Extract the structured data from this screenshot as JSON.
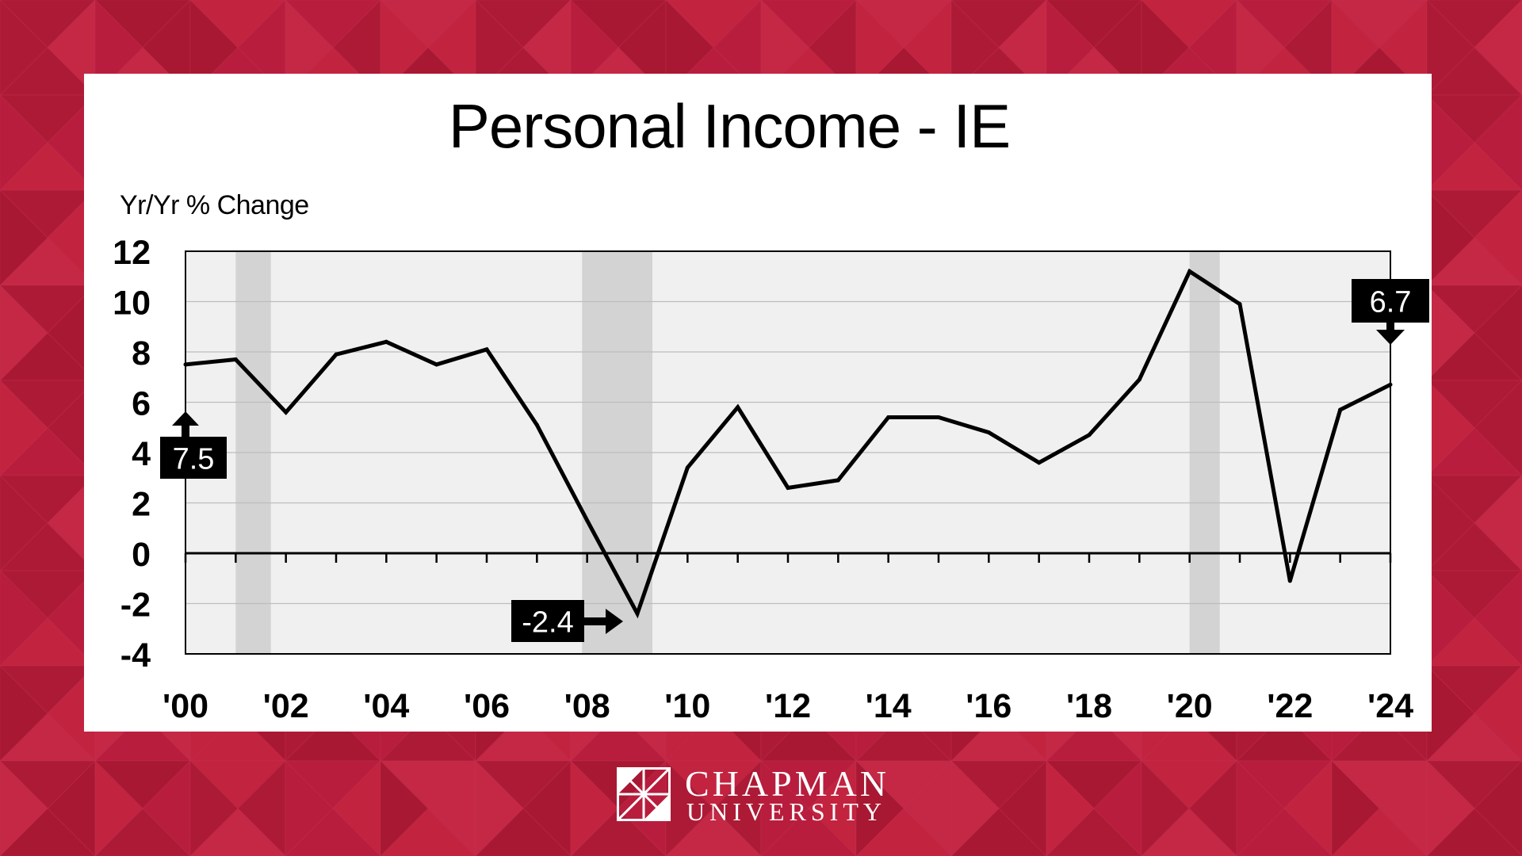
{
  "brand": {
    "name_line1": "CHAPMAN",
    "name_line2": "UNIVERSITY"
  },
  "colors": {
    "background": "#b81d3d",
    "plot_background": "#f0f0f0",
    "recession_band": "#d3d3d3",
    "line": "#000000",
    "callout_fill": "#000000",
    "callout_text": "#ffffff"
  },
  "chart_data": {
    "type": "line",
    "title": "Personal Income - IE",
    "ylabel": "Yr/Yr % Change",
    "xlabel": "",
    "ylim": [
      -4,
      12
    ],
    "yticks": [
      12,
      10,
      8,
      6,
      4,
      2,
      0,
      -2,
      -4
    ],
    "xlim": [
      2000,
      2024
    ],
    "xtick_labels": [
      {
        "year": 2000,
        "label": "'00"
      },
      {
        "year": 2002,
        "label": "'02"
      },
      {
        "year": 2004,
        "label": "'04"
      },
      {
        "year": 2006,
        "label": "'06"
      },
      {
        "year": 2008,
        "label": "'08"
      },
      {
        "year": 2010,
        "label": "'10"
      },
      {
        "year": 2012,
        "label": "'12"
      },
      {
        "year": 2014,
        "label": "'14"
      },
      {
        "year": 2016,
        "label": "'16"
      },
      {
        "year": 2018,
        "label": "'18"
      },
      {
        "year": 2020,
        "label": "'20"
      },
      {
        "year": 2022,
        "label": "'22"
      },
      {
        "year": 2024,
        "label": "'24"
      }
    ],
    "grid": true,
    "x": [
      2000,
      2001,
      2002,
      2003,
      2004,
      2005,
      2006,
      2007,
      2008,
      2009,
      2010,
      2011,
      2012,
      2013,
      2014,
      2015,
      2016,
      2017,
      2018,
      2019,
      2020,
      2021,
      2022,
      2023,
      2024
    ],
    "values": [
      7.5,
      7.7,
      5.6,
      7.9,
      8.4,
      7.5,
      8.1,
      5.1,
      1.3,
      -2.4,
      3.4,
      5.8,
      2.6,
      2.9,
      5.4,
      5.4,
      4.8,
      3.6,
      4.7,
      6.9,
      11.2,
      9.9,
      -1.1,
      5.7,
      6.7
    ],
    "recession_bands": [
      [
        2001.0,
        2001.7
      ],
      [
        2007.9,
        2009.3
      ],
      [
        2020.0,
        2020.6
      ]
    ],
    "annotations": [
      {
        "label": "7.5",
        "year": 2000,
        "value": 7.5,
        "arrow": "up"
      },
      {
        "label": "-2.4",
        "year": 2009,
        "value": -2.4,
        "arrow": "right"
      },
      {
        "label": "6.7",
        "year": 2024,
        "value": 6.7,
        "arrow": "down"
      }
    ]
  }
}
